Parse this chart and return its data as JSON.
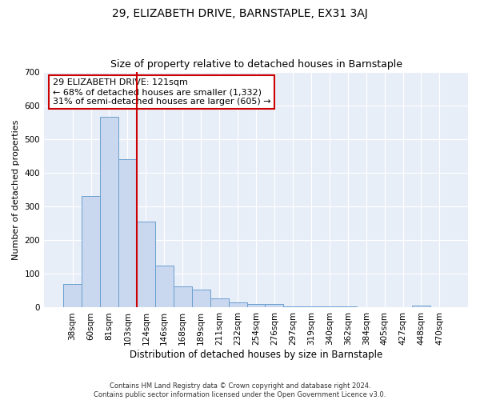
{
  "title": "29, ELIZABETH DRIVE, BARNSTAPLE, EX31 3AJ",
  "subtitle": "Size of property relative to detached houses in Barnstaple",
  "xlabel": "Distribution of detached houses by size in Barnstaple",
  "ylabel": "Number of detached properties",
  "categories": [
    "38sqm",
    "60sqm",
    "81sqm",
    "103sqm",
    "124sqm",
    "146sqm",
    "168sqm",
    "189sqm",
    "211sqm",
    "232sqm",
    "254sqm",
    "276sqm",
    "297sqm",
    "319sqm",
    "340sqm",
    "362sqm",
    "384sqm",
    "405sqm",
    "427sqm",
    "448sqm",
    "470sqm"
  ],
  "values": [
    70,
    330,
    565,
    440,
    255,
    125,
    63,
    53,
    28,
    15,
    10,
    10,
    3,
    3,
    3,
    3,
    0,
    0,
    0,
    5,
    0
  ],
  "bar_color": "#c9d8ee",
  "bar_edge_color": "#6a9fd0",
  "vline_x": 3.5,
  "vline_color": "#cc0000",
  "annotation_text": "29 ELIZABETH DRIVE: 121sqm\n← 68% of detached houses are smaller (1,332)\n31% of semi-detached houses are larger (605) →",
  "annotation_box_color": "#ffffff",
  "annotation_box_edge_color": "#cc0000",
  "ylim": [
    0,
    700
  ],
  "yticks": [
    0,
    100,
    200,
    300,
    400,
    500,
    600,
    700
  ],
  "background_color": "#e8eef8",
  "footer_text": "Contains HM Land Registry data © Crown copyright and database right 2024.\nContains public sector information licensed under the Open Government Licence v3.0.",
  "title_fontsize": 10,
  "subtitle_fontsize": 9,
  "xlabel_fontsize": 8.5,
  "ylabel_fontsize": 8,
  "tick_fontsize": 7.5,
  "annotation_fontsize": 8
}
